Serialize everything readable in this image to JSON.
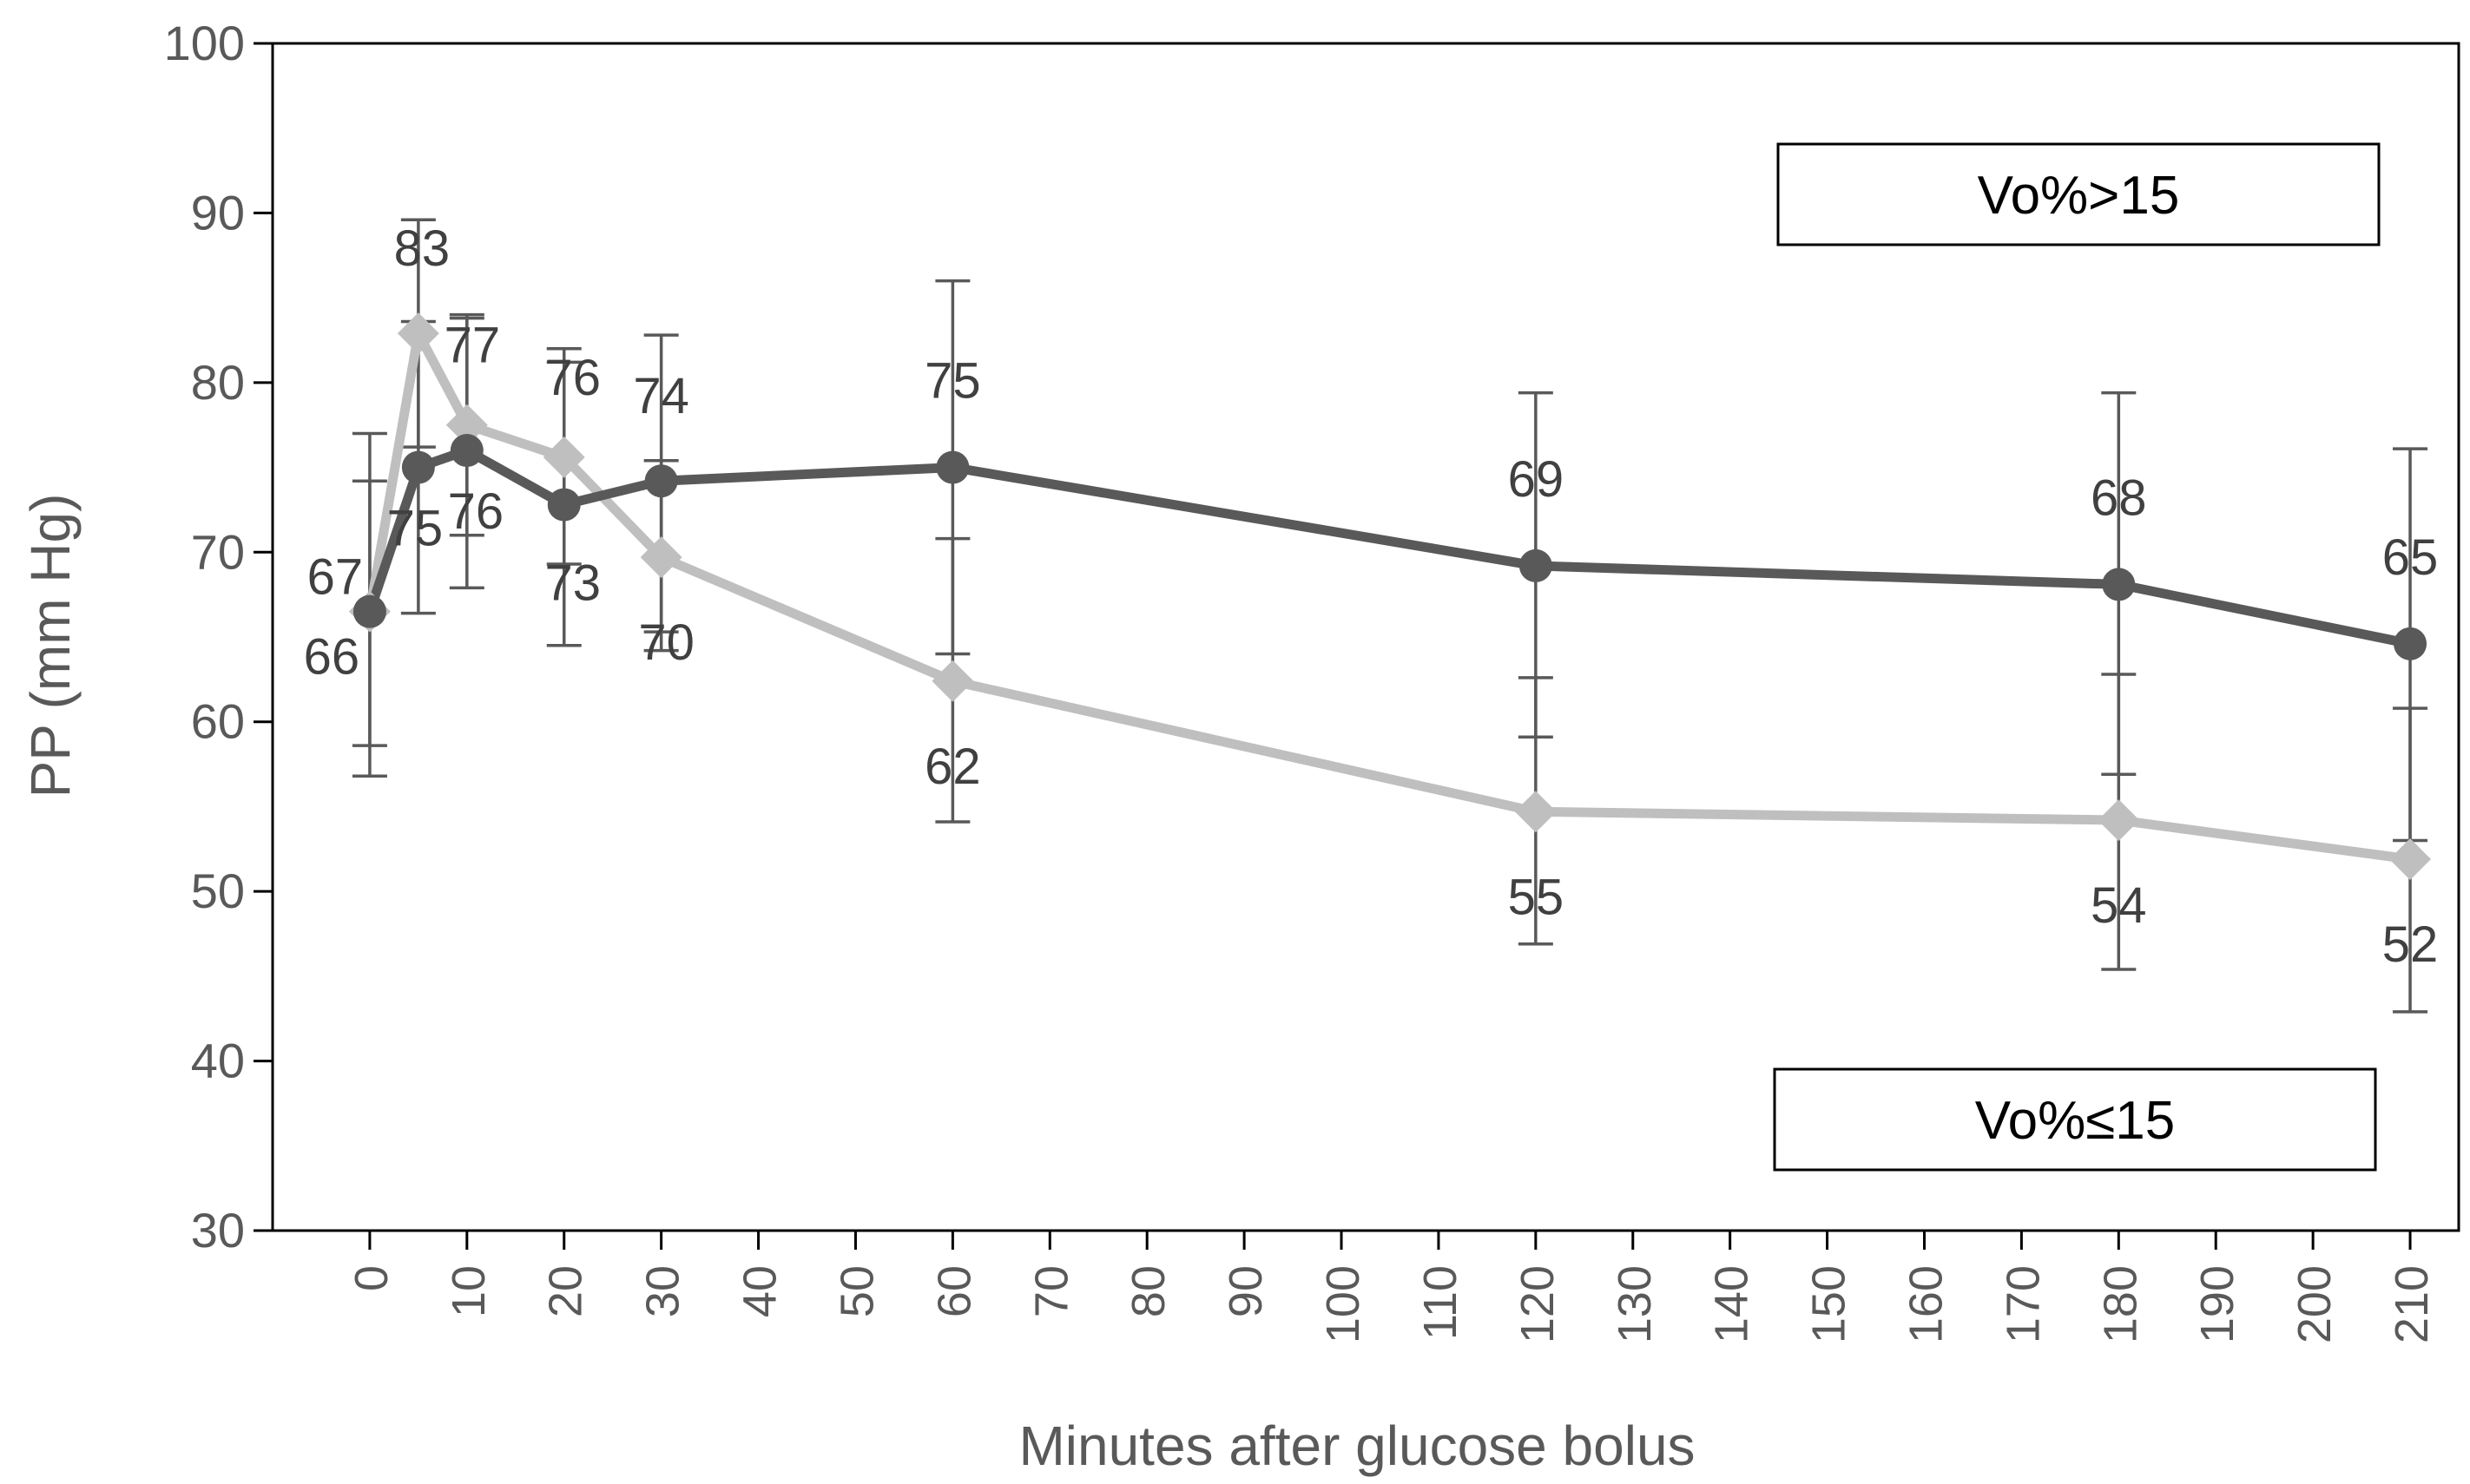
{
  "chart_data": {
    "type": "line",
    "xlabel": "Minutes after glucose bolus",
    "ylabel": "PP (mm Hg)",
    "xlim": [
      -10,
      215
    ],
    "ylim": [
      30,
      100
    ],
    "x_ticks": [
      0,
      10,
      20,
      30,
      40,
      50,
      60,
      70,
      80,
      90,
      100,
      110,
      120,
      130,
      140,
      150,
      160,
      170,
      180,
      190,
      200,
      210
    ],
    "y_ticks": [
      30,
      40,
      50,
      60,
      70,
      80,
      90,
      100
    ],
    "x": [
      0,
      5,
      10,
      20,
      30,
      60,
      120,
      180,
      210
    ],
    "series": [
      {
        "name": "Vo%>15",
        "marker": "circle",
        "color": "#595959",
        "values": [
          66.5,
          75,
          76,
          72.8,
          74.2,
          75,
          69.2,
          68.1,
          64.6
        ],
        "labels": [
          "67",
          "75",
          "76",
          "73",
          "74",
          "75",
          "69",
          "68",
          "65"
        ],
        "err_low": [
          56.8,
          66.4,
          67.9,
          64.5,
          65.3,
          64.0,
          59.1,
          56.9,
          53.0
        ],
        "err_high": [
          74.2,
          83.6,
          84.0,
          81.2,
          82.8,
          86.0,
          79.4,
          79.4,
          76.1
        ]
      },
      {
        "name": "Vo%≤15",
        "marker": "diamond",
        "color": "#bfbfbf",
        "values": [
          66.5,
          82.9,
          77.5,
          75.6,
          69.7,
          62.4,
          54.7,
          54.2,
          51.9
        ],
        "labels": [
          "66",
          "83",
          "77",
          "76",
          "70",
          "62",
          "55",
          "54",
          "52"
        ],
        "err_low": [
          58.6,
          76.2,
          71.0,
          69.3,
          64.2,
          54.1,
          46.9,
          45.4,
          42.9
        ],
        "err_high": [
          77.0,
          89.6,
          83.8,
          82.0,
          75.4,
          70.8,
          62.6,
          62.8,
          60.8
        ]
      }
    ],
    "legend": [
      {
        "text": "Vo%>15",
        "position": "top-right"
      },
      {
        "text": "Vo%≤15",
        "position": "bottom-right"
      }
    ]
  }
}
